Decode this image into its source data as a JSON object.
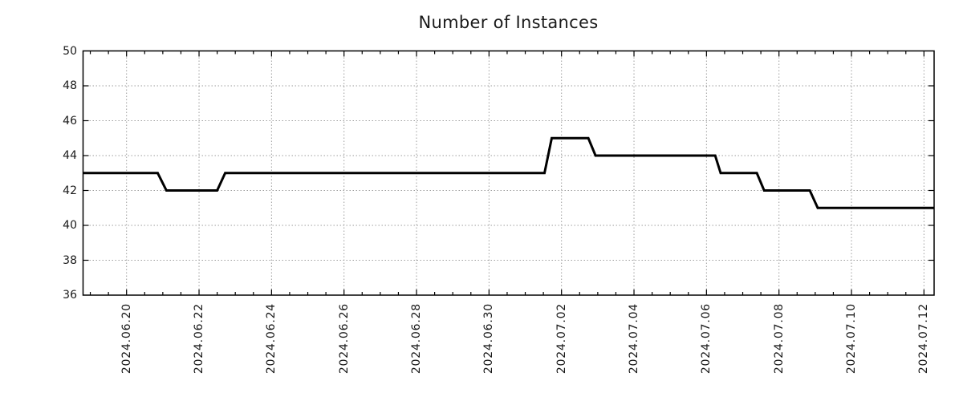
{
  "chart_data": {
    "type": "line",
    "subtype": "step-line",
    "title": "Number of Instances",
    "xlabel": "",
    "ylabel": "",
    "legend": null,
    "grid": "dotted",
    "background_color": "#ffffff",
    "line_color": "#000000",
    "line_width": 3,
    "grid_color": "#9e9e9e",
    "axis_color": "#000000",
    "text_color": "#1a1a1a",
    "ylim": [
      36,
      50
    ],
    "y_ticks": [
      36,
      38,
      40,
      42,
      44,
      46,
      48,
      50
    ],
    "x_range_days": [
      -1.2,
      22.28
    ],
    "x_minor_tick_interval_days": 0.5,
    "x_ticks": [
      {
        "day": 0,
        "label": "2024.06.20"
      },
      {
        "day": 2,
        "label": "2024.06.22"
      },
      {
        "day": 4,
        "label": "2024.06.24"
      },
      {
        "day": 6,
        "label": "2024.06.26"
      },
      {
        "day": 8,
        "label": "2024.06.28"
      },
      {
        "day": 10,
        "label": "2024.06.30"
      },
      {
        "day": 12,
        "label": "2024.07.02"
      },
      {
        "day": 14,
        "label": "2024.07.04"
      },
      {
        "day": 16,
        "label": "2024.07.06"
      },
      {
        "day": 18,
        "label": "2024.07.08"
      },
      {
        "day": 20,
        "label": "2024.07.10"
      },
      {
        "day": 22,
        "label": "2024.07.12"
      }
    ],
    "series": [
      {
        "name": "instances",
        "points": [
          {
            "time": "2024-06-18 19:15",
            "day": -1.2,
            "value": 43
          },
          {
            "time": "2024-06-20 20:45",
            "day": 0.86,
            "value": 43
          },
          {
            "time": "2024-06-21 02:30",
            "day": 1.1,
            "value": 42
          },
          {
            "time": "2024-06-22 12:00",
            "day": 2.5,
            "value": 42
          },
          {
            "time": "2024-06-22 17:15",
            "day": 2.72,
            "value": 43
          },
          {
            "time": "2024-07-01 12:45",
            "day": 11.53,
            "value": 43
          },
          {
            "time": "2024-07-01 17:30",
            "day": 11.73,
            "value": 45
          },
          {
            "time": "2024-07-02 17:45",
            "day": 12.74,
            "value": 45
          },
          {
            "time": "2024-07-02 22:30",
            "day": 12.94,
            "value": 44
          },
          {
            "time": "2024-07-06 05:45",
            "day": 16.24,
            "value": 44
          },
          {
            "time": "2024-07-06 09:20",
            "day": 16.39,
            "value": 43
          },
          {
            "time": "2024-07-07 09:20",
            "day": 17.39,
            "value": 43
          },
          {
            "time": "2024-07-07 14:10",
            "day": 17.59,
            "value": 42
          },
          {
            "time": "2024-07-08 20:30",
            "day": 18.85,
            "value": 42
          },
          {
            "time": "2024-07-09 01:40",
            "day": 19.07,
            "value": 41
          },
          {
            "time": "2024-07-12 06:45",
            "day": 22.28,
            "value": 41
          }
        ]
      }
    ]
  }
}
